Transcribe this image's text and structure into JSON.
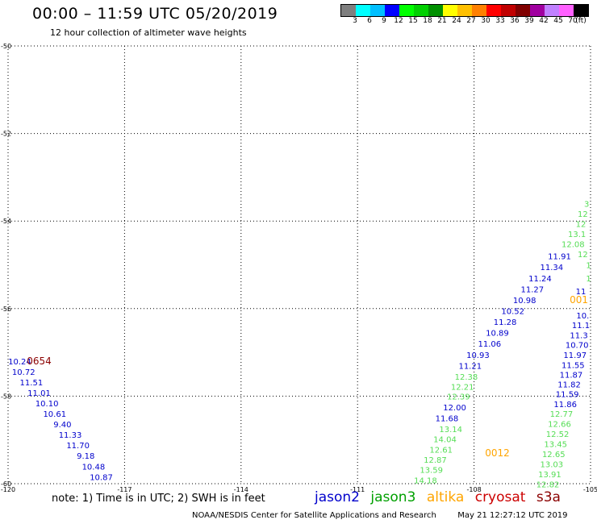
{
  "header": {
    "title": "00:00 – 11:59 UTC 05/20/2019",
    "subtitle": "12 hour collection of altimeter wave heights"
  },
  "colorbar": {
    "colors": [
      "#7f7f7f",
      "#00ffff",
      "#00bfff",
      "#0000ff",
      "#00ff00",
      "#00d000",
      "#009000",
      "#ffff00",
      "#ffc000",
      "#ff8000",
      "#ff0000",
      "#c00000",
      "#800000",
      "#a000a0",
      "#c080ff",
      "#ff60ff",
      "#000000"
    ],
    "labels": [
      "3",
      "6",
      "9",
      "12",
      "15",
      "18",
      "21",
      "24",
      "27",
      "30",
      "33",
      "36",
      "39",
      "42",
      "45",
      "70",
      "(ft)"
    ]
  },
  "map": {
    "lon_range": [
      -120,
      -105
    ],
    "lat_range": [
      -60,
      -50
    ],
    "lon_ticks": [
      "-120",
      "-117",
      "-114",
      "-111",
      "-108",
      "-105"
    ],
    "lat_ticks": [
      "-50",
      "-52",
      "-54",
      "-56",
      "-58",
      "-60"
    ],
    "grid": "dotted"
  },
  "colors": {
    "jason2": "#0000cc",
    "jason3_text": "#55dd55",
    "altika": "#ffa500",
    "cryosat": "#8b0000"
  },
  "points": [
    {
      "text": "10.24",
      "lon": -119.7,
      "lat": -57.2,
      "sat": "jason2"
    },
    {
      "text": "10.72",
      "lon": -119.6,
      "lat": -57.44,
      "sat": "jason2"
    },
    {
      "text": "11.51",
      "lon": -119.4,
      "lat": -57.68,
      "sat": "jason2"
    },
    {
      "text": "11.01",
      "lon": -119.2,
      "lat": -57.92,
      "sat": "jason2"
    },
    {
      "text": "10.10",
      "lon": -119.0,
      "lat": -58.16,
      "sat": "jason2"
    },
    {
      "text": "10.61",
      "lon": -118.8,
      "lat": -58.4,
      "sat": "jason2"
    },
    {
      "text": "9.40",
      "lon": -118.6,
      "lat": -58.64,
      "sat": "jason2"
    },
    {
      "text": "11.33",
      "lon": -118.4,
      "lat": -58.88,
      "sat": "jason2"
    },
    {
      "text": "11.70",
      "lon": -118.2,
      "lat": -59.12,
      "sat": "jason2"
    },
    {
      "text": "9.18",
      "lon": -118.0,
      "lat": -59.36,
      "sat": "jason2"
    },
    {
      "text": "10.48",
      "lon": -117.8,
      "lat": -59.6,
      "sat": "jason2"
    },
    {
      "text": "10.87",
      "lon": -117.6,
      "lat": -59.84,
      "sat": "jason2"
    },
    {
      "text": "11.91",
      "lon": -105.8,
      "lat": -54.8,
      "sat": "jason2"
    },
    {
      "text": "11.34",
      "lon": -106.0,
      "lat": -55.05,
      "sat": "jason2"
    },
    {
      "text": "11.24",
      "lon": -106.3,
      "lat": -55.3,
      "sat": "jason2"
    },
    {
      "text": "11.27",
      "lon": -106.5,
      "lat": -55.55,
      "sat": "jason2"
    },
    {
      "text": "10.98",
      "lon": -106.7,
      "lat": -55.8,
      "sat": "jason2"
    },
    {
      "text": "10.52",
      "lon": -107.0,
      "lat": -56.05,
      "sat": "jason2"
    },
    {
      "text": "11.28",
      "lon": -107.2,
      "lat": -56.3,
      "sat": "jason2"
    },
    {
      "text": "10.89",
      "lon": -107.4,
      "lat": -56.55,
      "sat": "jason2"
    },
    {
      "text": "11.06",
      "lon": -107.6,
      "lat": -56.8,
      "sat": "jason2"
    },
    {
      "text": "10.93",
      "lon": -107.9,
      "lat": -57.05,
      "sat": "jason2"
    },
    {
      "text": "11.21",
      "lon": -108.1,
      "lat": -57.3,
      "sat": "jason2"
    },
    {
      "text": "12.00",
      "lon": -108.5,
      "lat": -58.25,
      "sat": "jason2"
    },
    {
      "text": "11.68",
      "lon": -108.7,
      "lat": -58.5,
      "sat": "jason2"
    },
    {
      "text": "11",
      "lon": -105.25,
      "lat": -55.6,
      "sat": "jason2"
    },
    {
      "text": "10.",
      "lon": -105.2,
      "lat": -56.15,
      "sat": "jason2"
    },
    {
      "text": "11.1",
      "lon": -105.25,
      "lat": -56.37,
      "sat": "jason2"
    },
    {
      "text": "11.3",
      "lon": -105.3,
      "lat": -56.6,
      "sat": "jason2"
    },
    {
      "text": "10.70",
      "lon": -105.35,
      "lat": -56.82,
      "sat": "jason2"
    },
    {
      "text": "11.97",
      "lon": -105.4,
      "lat": -57.05,
      "sat": "jason2"
    },
    {
      "text": "11.55",
      "lon": -105.45,
      "lat": -57.28,
      "sat": "jason2"
    },
    {
      "text": "11.87",
      "lon": -105.5,
      "lat": -57.5,
      "sat": "jason2"
    },
    {
      "text": "11.82",
      "lon": -105.55,
      "lat": -57.73,
      "sat": "jason2"
    },
    {
      "text": "11.59",
      "lon": -105.6,
      "lat": -57.95,
      "sat": "jason2"
    },
    {
      "text": "11.86",
      "lon": -105.65,
      "lat": -58.18,
      "sat": "jason2"
    },
    {
      "text": "3",
      "lon": -105.1,
      "lat": -53.6,
      "sat": "jason3"
    },
    {
      "text": "12",
      "lon": -105.2,
      "lat": -53.83,
      "sat": "jason3"
    },
    {
      "text": "12",
      "lon": -105.25,
      "lat": -54.06,
      "sat": "jason3"
    },
    {
      "text": "13.1",
      "lon": -105.35,
      "lat": -54.29,
      "sat": "jason3"
    },
    {
      "text": "12.08",
      "lon": -105.45,
      "lat": -54.52,
      "sat": "jason3"
    },
    {
      "text": "12",
      "lon": -105.2,
      "lat": -54.75,
      "sat": "jason3"
    },
    {
      "text": "1",
      "lon": -105.05,
      "lat": -55.0,
      "sat": "jason3"
    },
    {
      "text": "1",
      "lon": -105.05,
      "lat": -55.3,
      "sat": "jason3"
    },
    {
      "text": "12.38",
      "lon": -108.2,
      "lat": -57.55,
      "sat": "jason3"
    },
    {
      "text": "12.21",
      "lon": -108.3,
      "lat": -57.78,
      "sat": "jason3"
    },
    {
      "text": "12.39",
      "lon": -108.4,
      "lat": -58.0,
      "sat": "jason3"
    },
    {
      "text": "13.14",
      "lon": -108.6,
      "lat": -58.75,
      "sat": "jason3"
    },
    {
      "text": "14.04",
      "lon": -108.75,
      "lat": -58.98,
      "sat": "jason3"
    },
    {
      "text": "12.61",
      "lon": -108.85,
      "lat": -59.22,
      "sat": "jason3"
    },
    {
      "text": "12.87",
      "lon": -109.0,
      "lat": -59.45,
      "sat": "jason3"
    },
    {
      "text": "13.59",
      "lon": -109.1,
      "lat": -59.68,
      "sat": "jason3"
    },
    {
      "text": "14.18",
      "lon": -109.25,
      "lat": -59.92,
      "sat": "jason3"
    },
    {
      "text": "12.77",
      "lon": -105.75,
      "lat": -58.4,
      "sat": "jason3"
    },
    {
      "text": "12.66",
      "lon": -105.8,
      "lat": -58.63,
      "sat": "jason3"
    },
    {
      "text": "12.52",
      "lon": -105.85,
      "lat": -58.86,
      "sat": "jason3"
    },
    {
      "text": "13.45",
      "lon": -105.9,
      "lat": -59.09,
      "sat": "jason3"
    },
    {
      "text": "12.65",
      "lon": -105.95,
      "lat": -59.32,
      "sat": "jason3"
    },
    {
      "text": "13.03",
      "lon": -106.0,
      "lat": -59.55,
      "sat": "jason3"
    },
    {
      "text": "13.91",
      "lon": -106.05,
      "lat": -59.78,
      "sat": "jason3"
    },
    {
      "text": "12.82",
      "lon": -106.1,
      "lat": -60.01,
      "sat": "jason3"
    }
  ],
  "markers": [
    {
      "text": "0654",
      "lon": -119.2,
      "lat": -57.2,
      "sat": "cryosat"
    },
    {
      "text": "0012",
      "lon": -107.4,
      "lat": -59.3,
      "sat": "altika"
    },
    {
      "text": "001",
      "lon": -105.3,
      "lat": -55.8,
      "sat": "altika"
    }
  ],
  "legend": {
    "note": "note: 1) Time is in UTC; 2) SWH is in feet",
    "jason2": "jason2",
    "jason3": "jason3",
    "altika": "altika",
    "cryosat": "cryosat",
    "s3a": "s3a"
  },
  "footer": {
    "credit": "NOAA/NESDIS Center for Satellite Applications and Research",
    "timestamp": "May 21 12:27:12 UTC 2019"
  }
}
